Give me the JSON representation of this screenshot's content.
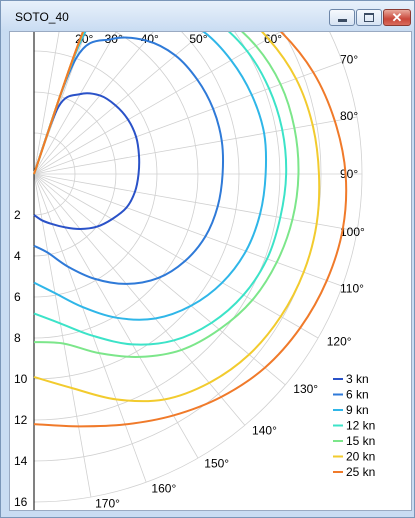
{
  "window": {
    "title": "SOTO_40",
    "minimize_icon": "minimize-icon",
    "maximize_icon": "maximize-icon",
    "close_icon": "close-icon"
  },
  "chart_data": {
    "type": "line",
    "subtype": "polar",
    "title": "",
    "radial_axis": {
      "range": [
        0,
        16
      ],
      "tick_labels": [
        "2",
        "4",
        "6",
        "8",
        "10",
        "12",
        "14",
        "16"
      ],
      "circles": [
        2,
        4,
        6,
        8,
        10,
        12,
        14,
        16
      ]
    },
    "angle_axis": {
      "range_deg": [
        0,
        180
      ],
      "spoke_step_deg": 10,
      "tick_labels": [
        "20°",
        "30°",
        "40°",
        "50°",
        "60°",
        "70°",
        "80°",
        "90°",
        "100°",
        "110°",
        "120°",
        "130°",
        "140°",
        "150°",
        "160°",
        "170°"
      ]
    },
    "grid": true,
    "legend": "bottom-right",
    "angles_deg": [
      0,
      20,
      30,
      40,
      50,
      60,
      70,
      80,
      90,
      100,
      110,
      120,
      130,
      140,
      150,
      160,
      170,
      180
    ],
    "series": [
      {
        "name": "3 kn",
        "color": "#2a52c8",
        "values": [
          0,
          3.5,
          4.5,
          5.0,
          5.2,
          5.3,
          5.3,
          5.2,
          5.1,
          5.0,
          4.8,
          4.4,
          4.0,
          3.5,
          3.0,
          2.6,
          2.3,
          2.0
        ]
      },
      {
        "name": "6 kn",
        "color": "#2f7ad8",
        "values": [
          0,
          6.0,
          7.6,
          8.5,
          9.0,
          9.2,
          9.3,
          9.3,
          9.2,
          9.1,
          8.9,
          8.5,
          7.9,
          7.0,
          5.9,
          4.8,
          3.9,
          3.5
        ]
      },
      {
        "name": "9 kn",
        "color": "#2fb6e8",
        "values": [
          0,
          7.5,
          9.2,
          10.2,
          10.8,
          11.1,
          11.3,
          11.4,
          11.3,
          11.2,
          11.0,
          10.6,
          10.0,
          9.2,
          8.1,
          6.9,
          5.9,
          5.3
        ]
      },
      {
        "name": "12 kn",
        "color": "#3ce3c8",
        "values": [
          0,
          8.3,
          10.0,
          11.0,
          11.6,
          12.0,
          12.2,
          12.3,
          12.3,
          12.2,
          12.1,
          11.8,
          11.3,
          10.6,
          9.6,
          8.4,
          7.4,
          6.8
        ]
      },
      {
        "name": "15 kn",
        "color": "#7ce68a",
        "values": [
          0,
          8.7,
          10.4,
          11.4,
          12.0,
          12.5,
          12.8,
          12.9,
          12.9,
          12.8,
          12.6,
          12.3,
          11.8,
          11.2,
          10.3,
          9.3,
          8.4,
          8.2
        ]
      },
      {
        "name": "20 kn",
        "color": "#f2cb2e",
        "values": [
          0,
          9.0,
          10.8,
          11.9,
          12.7,
          13.2,
          13.6,
          13.8,
          13.9,
          14.0,
          14.0,
          13.9,
          13.7,
          13.3,
          12.7,
          11.7,
          10.6,
          9.9
        ]
      },
      {
        "name": "25 kn",
        "color": "#f07a2a",
        "values": [
          0,
          9.1,
          11.0,
          12.2,
          13.2,
          13.9,
          14.5,
          14.9,
          15.2,
          15.3,
          15.2,
          15.0,
          14.7,
          14.2,
          13.6,
          13.0,
          12.5,
          12.2
        ]
      }
    ]
  }
}
